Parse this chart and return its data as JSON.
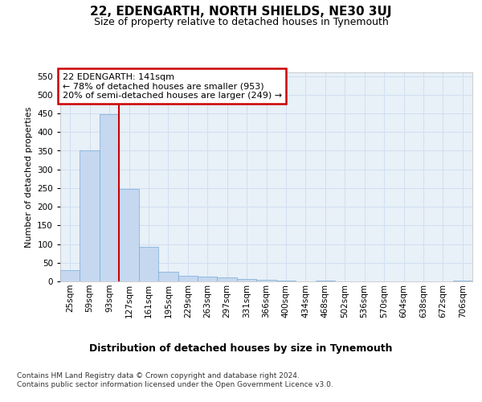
{
  "title": "22, EDENGARTH, NORTH SHIELDS, NE30 3UJ",
  "subtitle": "Size of property relative to detached houses in Tynemouth",
  "xlabel": "Distribution of detached houses by size in Tynemouth",
  "ylabel": "Number of detached properties",
  "bar_values": [
    30,
    350,
    447,
    248,
    93,
    25,
    15,
    13,
    10,
    7,
    5,
    3,
    0,
    2,
    0,
    0,
    0,
    0,
    0,
    0,
    2
  ],
  "bin_labels": [
    "25sqm",
    "59sqm",
    "93sqm",
    "127sqm",
    "161sqm",
    "195sqm",
    "229sqm",
    "263sqm",
    "297sqm",
    "331sqm",
    "366sqm",
    "400sqm",
    "434sqm",
    "468sqm",
    "502sqm",
    "536sqm",
    "570sqm",
    "604sqm",
    "638sqm",
    "672sqm",
    "706sqm"
  ],
  "bar_color": "#c5d8f0",
  "bar_edge_color": "#7aaad4",
  "grid_color": "#d0dff0",
  "background_color": "#e8f0f8",
  "annotation_text": "22 EDENGARTH: 141sqm\n← 78% of detached houses are smaller (953)\n20% of semi-detached houses are larger (249) →",
  "annotation_box_color": "#ffffff",
  "annotation_box_edge_color": "#cc0000",
  "vline_color": "#cc0000",
  "vline_x": 3,
  "ylim": [
    0,
    560
  ],
  "yticks": [
    0,
    50,
    100,
    150,
    200,
    250,
    300,
    350,
    400,
    450,
    500,
    550
  ],
  "footer_line1": "Contains HM Land Registry data © Crown copyright and database right 2024.",
  "footer_line2": "Contains public sector information licensed under the Open Government Licence v3.0.",
  "fig_bg": "#ffffff",
  "title_fontsize": 11,
  "subtitle_fontsize": 9,
  "xlabel_fontsize": 9,
  "ylabel_fontsize": 8,
  "tick_fontsize": 7.5,
  "annotation_fontsize": 8,
  "footer_fontsize": 6.5
}
